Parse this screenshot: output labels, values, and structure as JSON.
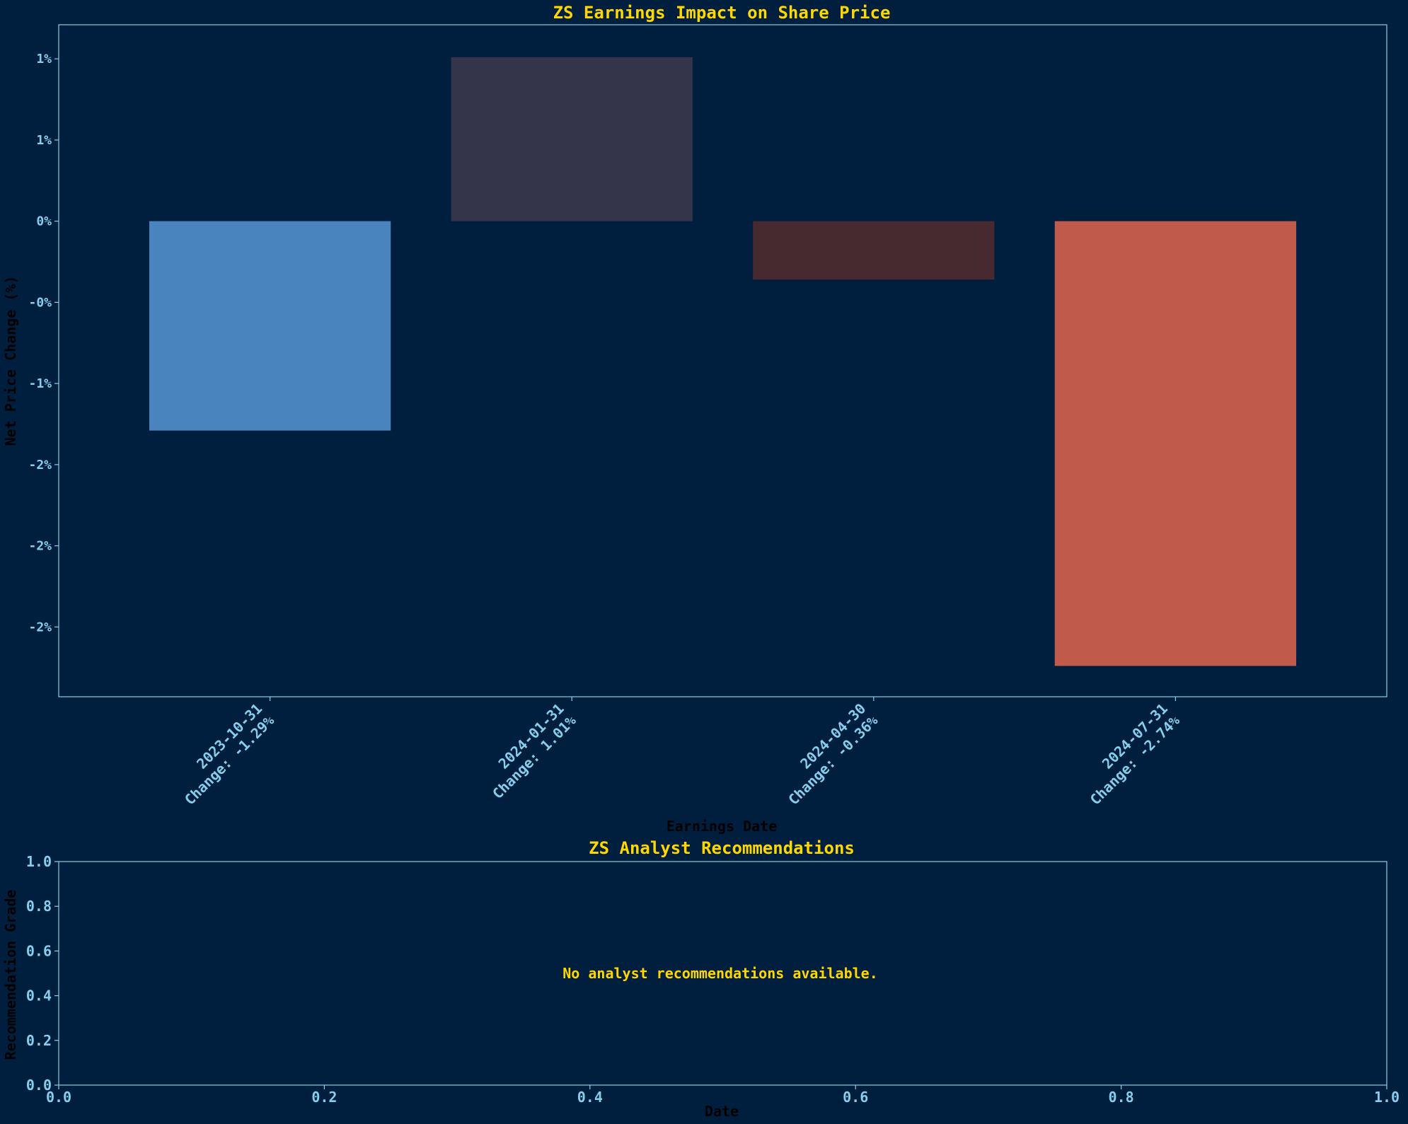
{
  "chart_data": [
    {
      "type": "bar",
      "title": "ZS Earnings Impact on Share Price",
      "xlabel": "Earnings Date",
      "ylabel": "Net Price Change (%)",
      "categories": [
        "2023-10-31",
        "2024-01-31",
        "2024-04-30",
        "2024-07-31"
      ],
      "category_labels": [
        [
          "2023-10-31",
          "Change: -1.29%"
        ],
        [
          "2024-01-31",
          "Change: 1.01%"
        ],
        [
          "2024-04-30",
          "Change: -0.36%"
        ],
        [
          "2024-07-31",
          "Change: -2.74%"
        ]
      ],
      "values": [
        -1.29,
        1.01,
        -0.36,
        -2.74
      ],
      "bar_colors": [
        "#4a84be",
        "#34344a",
        "#472a30",
        "#c05a4a"
      ],
      "ylim": [
        -2.93,
        1.21
      ],
      "yticks": [
        -2.5,
        -2.0,
        -1.5,
        -1.0,
        -0.5,
        0.0,
        0.5,
        1.0
      ],
      "ytick_labels": [
        "-2%",
        "-2%",
        "-2%",
        "-1%",
        "-0%",
        "0%",
        "1%",
        "1%"
      ],
      "grid": false
    },
    {
      "type": "line",
      "title": "ZS Analyst Recommendations",
      "xlabel": "Date",
      "ylabel": "Recommendation Grade",
      "xlim": [
        0,
        1
      ],
      "ylim": [
        0,
        1
      ],
      "xticks": [
        0.0,
        0.2,
        0.4,
        0.6,
        0.8,
        1.0
      ],
      "xtick_labels": [
        "0.0",
        "0.2",
        "0.4",
        "0.6",
        "0.8",
        "1.0"
      ],
      "yticks": [
        0.0,
        0.2,
        0.4,
        0.6,
        0.8,
        1.0
      ],
      "ytick_labels": [
        "0.0",
        "0.2",
        "0.4",
        "0.6",
        "0.8",
        "1.0"
      ],
      "annotation": "No analyst recommendations available.",
      "series": []
    }
  ],
  "colors": {
    "background": "#001f3f",
    "axes": "#87ceeb",
    "title": "#ffd700"
  }
}
